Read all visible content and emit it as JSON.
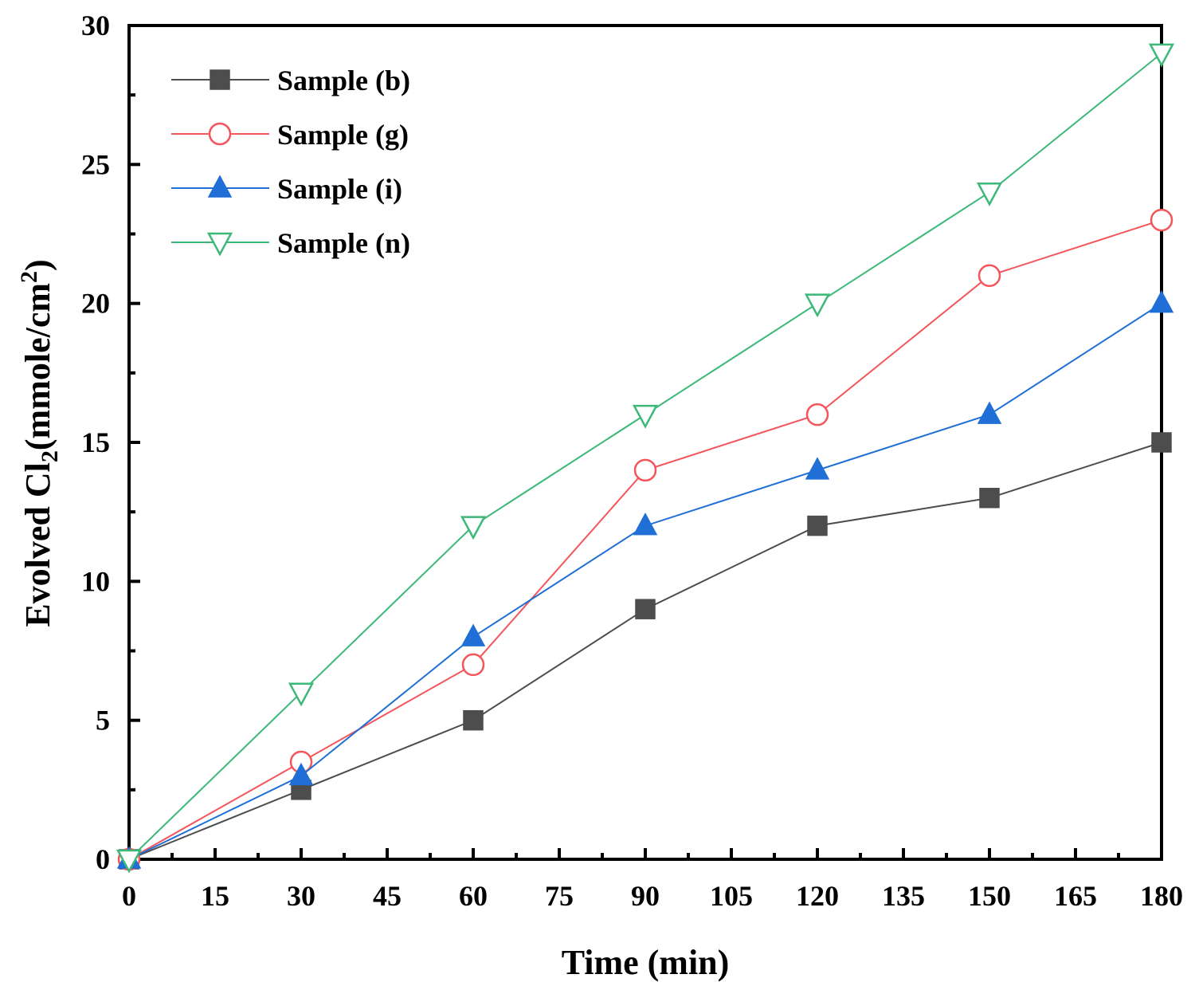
{
  "chart_data": {
    "type": "line",
    "xlabel": "Time (min)",
    "ylabel": {
      "prefix": "Evolved Cl",
      "subscript": "2",
      "middle": "(mmole/cm",
      "superscript": "2",
      "suffix": ")"
    },
    "x": [
      0,
      30,
      60,
      90,
      120,
      150,
      180
    ],
    "xlim": [
      0,
      180
    ],
    "ylim": [
      0,
      30
    ],
    "xticks": [
      0,
      15,
      30,
      45,
      60,
      75,
      90,
      105,
      120,
      135,
      150,
      165,
      180
    ],
    "yticks": [
      0,
      5,
      10,
      15,
      20,
      25,
      30
    ],
    "grid": false,
    "legend_position": "top-left",
    "series": [
      {
        "name": "Sample (b)",
        "color": "#4d4d4d",
        "marker": "square-filled",
        "values": [
          0,
          2.5,
          5,
          9,
          12,
          13,
          15
        ]
      },
      {
        "name": "Sample (g)",
        "color": "#f4555a",
        "marker": "circle-open",
        "values": [
          0,
          3.5,
          7,
          14,
          16,
          21,
          23
        ]
      },
      {
        "name": "Sample (i)",
        "color": "#1f6fd6",
        "marker": "triangle-up-filled",
        "values": [
          0,
          3,
          8,
          12,
          14,
          16,
          20
        ]
      },
      {
        "name": "Sample (n)",
        "color": "#3cb878",
        "marker": "triangle-down-open",
        "values": [
          0,
          6,
          12,
          16,
          20,
          24,
          29
        ]
      }
    ]
  }
}
